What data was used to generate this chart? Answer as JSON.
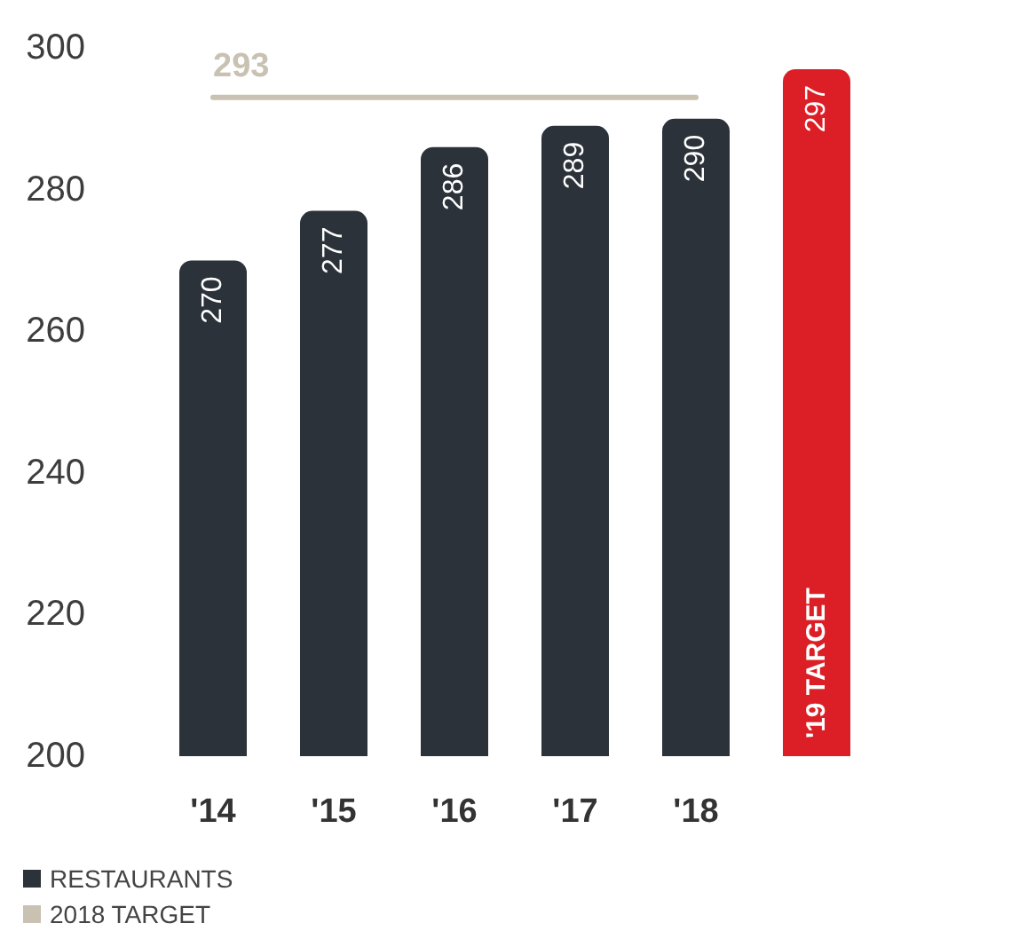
{
  "chart_data": {
    "type": "bar",
    "categories": [
      "'14",
      "'15",
      "'16",
      "'17",
      "'18",
      "'19 TARGET"
    ],
    "series": [
      {
        "name": "RESTAURANTS",
        "color": "#2b3239",
        "colors": [
          "#2b3239",
          "#2b3239",
          "#2b3239",
          "#2b3239",
          "#2b3239",
          "#dc1f26"
        ],
        "values": [
          270,
          277,
          286,
          289,
          290,
          297
        ],
        "value_labels": [
          "270",
          "277",
          "286",
          "289",
          "290",
          "297"
        ]
      },
      {
        "type": "line",
        "name": "2018 TARGET",
        "color": "#c9c1b1",
        "values": [
          293,
          293,
          293,
          293,
          293,
          null
        ],
        "value_labels": [
          "293",
          null,
          null,
          null,
          null,
          null
        ]
      }
    ],
    "ylim": [
      200,
      300
    ],
    "yticks": [
      200,
      220,
      240,
      260,
      280,
      300
    ],
    "grid": false,
    "legend": "bottom left",
    "marker": "none"
  }
}
